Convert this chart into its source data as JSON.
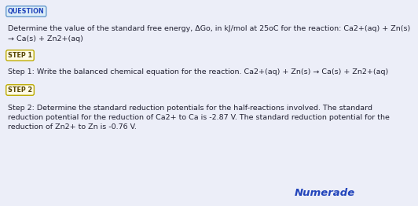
{
  "bg_color": "#eceef8",
  "title_badge": "QUESTION",
  "title_badge_facecolor": "#ddeef8",
  "title_badge_edgecolor": "#6699cc",
  "title_badge_text_color": "#2244bb",
  "step_badge_facecolor": "#fffbe6",
  "step_badge_edgecolor": "#bbaa00",
  "step_badge_text_color": "#554400",
  "step1_badge": "STEP 1",
  "step2_badge": "STEP 2",
  "question_line1": "Determine the value of the standard free energy, ΔGo, in kJ/mol at 25oC for the reaction: Ca2+(aq) + Zn(s)",
  "question_line2": "→ Ca(s) + Zn2+(aq)",
  "step1_text": "Step 1: Write the balanced chemical equation for the reaction. Ca2+(aq) + Zn(s) → Ca(s) + Zn2+(aq)",
  "step2_line1": "Step 2: Determine the standard reduction potentials for the half-reactions involved. The standard",
  "step2_line2": "reduction potential for the reduction of Ca2+ to Ca is -2.87 V. The standard reduction potential for the",
  "step2_line3": "reduction of Zn2+ to Zn is -0.76 V.",
  "numerade_text": "Numerade",
  "numerade_color": "#2244bb",
  "body_text_color": "#222233",
  "body_font_size": 6.8,
  "badge_font_size": 5.8,
  "numerade_font_size": 9.5
}
